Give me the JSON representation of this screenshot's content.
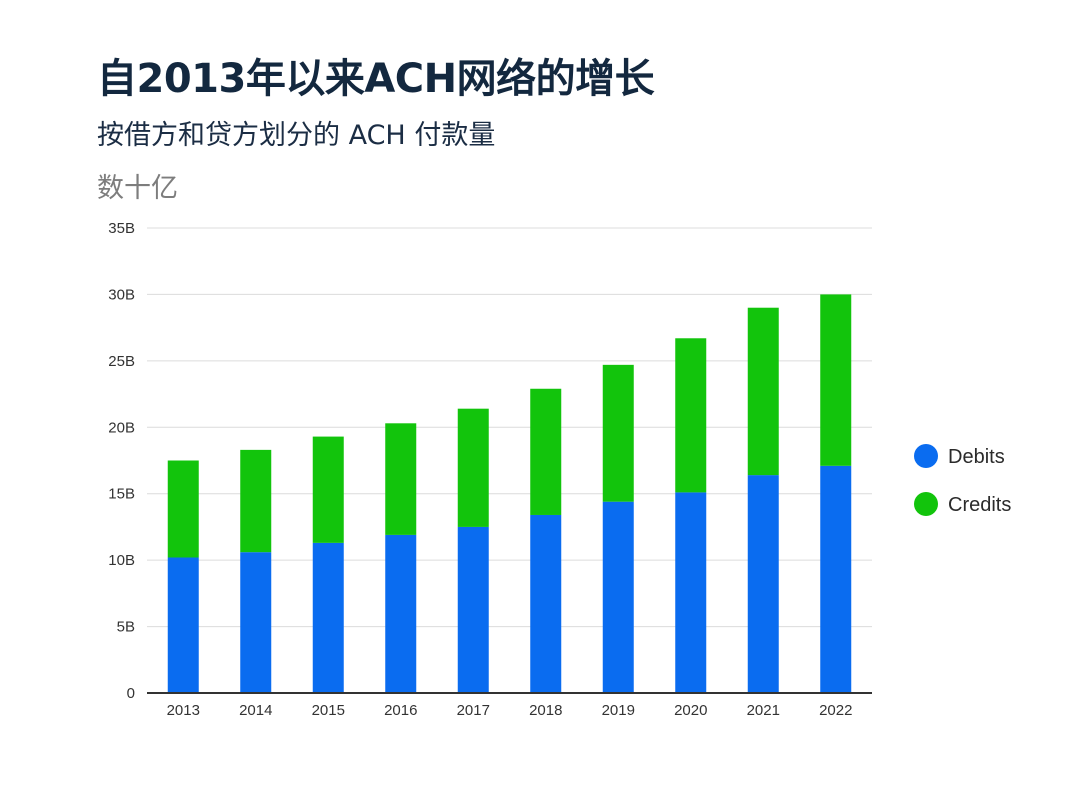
{
  "title": "自2013年以来ACH网络的增长",
  "subtitle": "按借方和贷方划分的 ACH 付款量",
  "unit_label": "数十亿",
  "chart_data": {
    "type": "bar",
    "stacked": true,
    "categories": [
      "2013",
      "2014",
      "2015",
      "2016",
      "2017",
      "2018",
      "2019",
      "2020",
      "2021",
      "2022"
    ],
    "series": [
      {
        "name": "Debits",
        "color": "#0a6cf0",
        "values": [
          10.2,
          10.6,
          11.3,
          11.9,
          12.5,
          13.4,
          14.4,
          15.1,
          16.4,
          17.1
        ]
      },
      {
        "name": "Credits",
        "color": "#12c40c",
        "values": [
          7.3,
          7.7,
          8.0,
          8.4,
          8.9,
          9.5,
          10.3,
          11.6,
          12.6,
          12.9
        ]
      }
    ],
    "yticks": [
      {
        "value": 0,
        "label": "0"
      },
      {
        "value": 5,
        "label": "5B"
      },
      {
        "value": 10,
        "label": "10B"
      },
      {
        "value": 15,
        "label": "15B"
      },
      {
        "value": 20,
        "label": "20B"
      },
      {
        "value": 25,
        "label": "25B"
      },
      {
        "value": 30,
        "label": "30B"
      },
      {
        "value": 35,
        "label": "35B"
      }
    ],
    "ylim": [
      0,
      35
    ],
    "grid": true,
    "legend_position": "right"
  }
}
